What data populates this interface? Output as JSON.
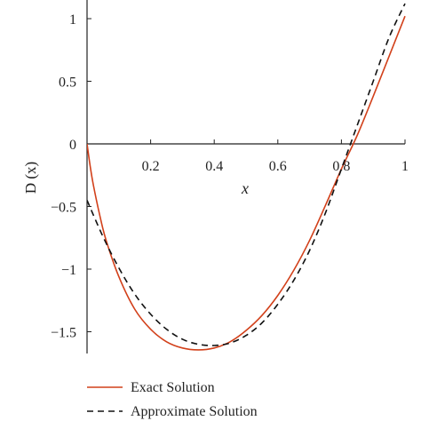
{
  "chart_data": {
    "type": "line",
    "xlabel": "x",
    "ylabel": "D (x)",
    "xlim": [
      0,
      1
    ],
    "ylim": [
      -1.65,
      1.1
    ],
    "x_ticks": [
      0.2,
      0.4,
      0.6,
      0.8,
      1
    ],
    "x_tick_labels": [
      "0.2",
      "0.4",
      "0.6",
      "0.8",
      "1"
    ],
    "y_ticks": [
      1,
      0.5,
      0,
      -0.5,
      -1,
      -1.5
    ],
    "y_tick_labels": [
      "1",
      "0.5",
      "0",
      "−0.5",
      "−1",
      "−1.5"
    ],
    "grid": false,
    "legend_position": "bottom-left",
    "series": [
      {
        "name": "Exact Solution",
        "color": "#d2401a",
        "style": "solid",
        "x": [
          0,
          0.01,
          0.02,
          0.04,
          0.06,
          0.1,
          0.15,
          0.2,
          0.25,
          0.3,
          0.35,
          0.4,
          0.45,
          0.5,
          0.55,
          0.6,
          0.65,
          0.7,
          0.75,
          0.8,
          0.85,
          0.9,
          0.95,
          1
        ],
        "y": [
          0,
          -0.18,
          -0.33,
          -0.57,
          -0.77,
          -1.06,
          -1.32,
          -1.48,
          -1.58,
          -1.63,
          -1.645,
          -1.63,
          -1.58,
          -1.49,
          -1.37,
          -1.21,
          -1.01,
          -0.77,
          -0.49,
          -0.2,
          0.07,
          0.38,
          0.7,
          1.02
        ]
      },
      {
        "name": "Approximate Solution",
        "color": "#111111",
        "style": "dashed",
        "x": [
          0,
          0.05,
          0.1,
          0.15,
          0.2,
          0.25,
          0.3,
          0.35,
          0.4,
          0.45,
          0.5,
          0.55,
          0.6,
          0.65,
          0.7,
          0.75,
          0.8,
          0.85,
          0.9,
          0.95,
          1
        ],
        "y": [
          -0.45,
          -0.74,
          -0.99,
          -1.2,
          -1.36,
          -1.48,
          -1.56,
          -1.6,
          -1.61,
          -1.59,
          -1.53,
          -1.43,
          -1.28,
          -1.09,
          -0.85,
          -0.55,
          -0.2,
          0.15,
          0.5,
          0.85,
          1.12
        ]
      }
    ]
  }
}
